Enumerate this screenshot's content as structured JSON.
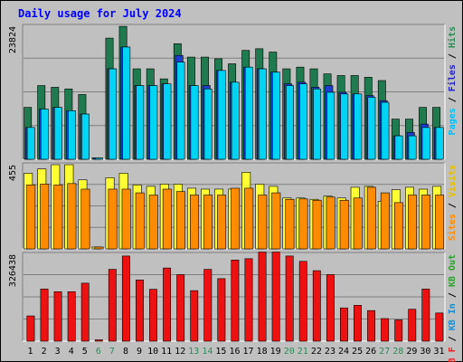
{
  "chart_data": {
    "type": "bar",
    "title": "Daily usage for July 2024",
    "categories": [
      "1",
      "2",
      "3",
      "4",
      "5",
      "6",
      "7",
      "8",
      "9",
      "10",
      "11",
      "12",
      "13",
      "14",
      "15",
      "16",
      "17",
      "18",
      "19",
      "20",
      "21",
      "22",
      "23",
      "24",
      "25",
      "26",
      "27",
      "28",
      "29",
      "30",
      "31"
    ],
    "weekend_days": [
      "6",
      "7",
      "13",
      "14",
      "20",
      "21",
      "27",
      "28"
    ],
    "panels": [
      {
        "id": "top",
        "ylabel_max": "23824",
        "ymax": 23824,
        "legend": [
          {
            "text": "Pages",
            "color": "#00bfff"
          },
          {
            "text": " / ",
            "color": "#000000"
          },
          {
            "text": "Files",
            "color": "#2020cc"
          },
          {
            "text": " / ",
            "color": "#000000"
          },
          {
            "text": "Hits",
            "color": "#2e8b57"
          }
        ],
        "series": [
          {
            "name": "Hits",
            "color": "#1f7a4f",
            "values": [
              9300,
              13200,
              12900,
              12600,
              11600,
              0,
              21700,
              23800,
              16200,
              16200,
              14400,
              20700,
              18300,
              18300,
              18000,
              17100,
              19500,
              19800,
              19200,
              16200,
              16500,
              16200,
              15300,
              15000,
              15000,
              14700,
              14100,
              7200,
              7200,
              9300,
              9300
            ]
          },
          {
            "name": "Files",
            "color": "#1c3fd0",
            "values": [
              5700,
              9000,
              9300,
              8700,
              8100,
              0,
              16200,
              20100,
              13200,
              13200,
              13500,
              18600,
              13200,
              13200,
              15900,
              13800,
              16500,
              16200,
              15600,
              13500,
              13800,
              12900,
              13200,
              12000,
              11700,
              11400,
              10500,
              4200,
              4800,
              6300,
              5700
            ]
          },
          {
            "name": "Pages",
            "color": "#00d4f5",
            "values": [
              5700,
              9000,
              9300,
              8700,
              8100,
              0,
              16200,
              20100,
              13200,
              13200,
              13500,
              17400,
              13200,
              12600,
              15900,
              13800,
              16500,
              16200,
              15600,
              13200,
              13500,
              12600,
              12000,
              11700,
              11700,
              11100,
              10200,
              4200,
              4200,
              5700,
              5700
            ]
          }
        ]
      },
      {
        "id": "mid",
        "ylabel_max": "455",
        "ymax": 455,
        "legend": [
          {
            "text": "Sites",
            "color": "#ff8c00"
          },
          {
            "text": " / ",
            "color": "#000000"
          },
          {
            "text": "Visits",
            "color": "#e6c000"
          }
        ],
        "series": [
          {
            "name": "Visits",
            "color": "#ffff33",
            "values": [
              409,
              432,
              455,
              455,
              373,
              10,
              385,
              409,
              346,
              338,
              350,
              350,
              328,
              323,
              323,
              323,
              414,
              350,
              338,
              275,
              275,
              268,
              285,
              275,
              333,
              338,
              257,
              320,
              333,
              323,
              338
            ]
          },
          {
            "name": "Sites",
            "color": "#ff8c00",
            "values": [
              346,
              350,
              346,
              353,
              323,
              10,
              323,
              323,
              303,
              291,
              323,
              310,
              291,
              291,
              291,
              328,
              328,
              291,
              303,
              268,
              270,
              263,
              280,
              263,
              275,
              333,
              303,
              250,
              291,
              291,
              291
            ]
          }
        ]
      },
      {
        "id": "bot",
        "ylabel_max": "326438",
        "ymax": 326438,
        "legend": [
          {
            "text": "KB F",
            "color": "#ee2222"
          },
          {
            "text": " / ",
            "color": "#000000"
          },
          {
            "text": "KB In",
            "color": "#1a8ccf"
          },
          {
            "text": " / ",
            "color": "#000000"
          },
          {
            "text": "KB Out",
            "color": "#2ca02c"
          }
        ],
        "series": [
          {
            "name": "KB F",
            "color": "#ee1111",
            "values": [
              95000,
              196000,
              186000,
              186000,
              218000,
              0,
              270000,
              320000,
              230000,
              195000,
              275000,
              250000,
              190000,
              270000,
              235000,
              305000,
              310000,
              335000,
              335000,
              320000,
              300000,
              265000,
              250000,
              125000,
              135000,
              115000,
              85000,
              80000,
              120000,
              196000,
              106000
            ]
          }
        ]
      }
    ]
  }
}
